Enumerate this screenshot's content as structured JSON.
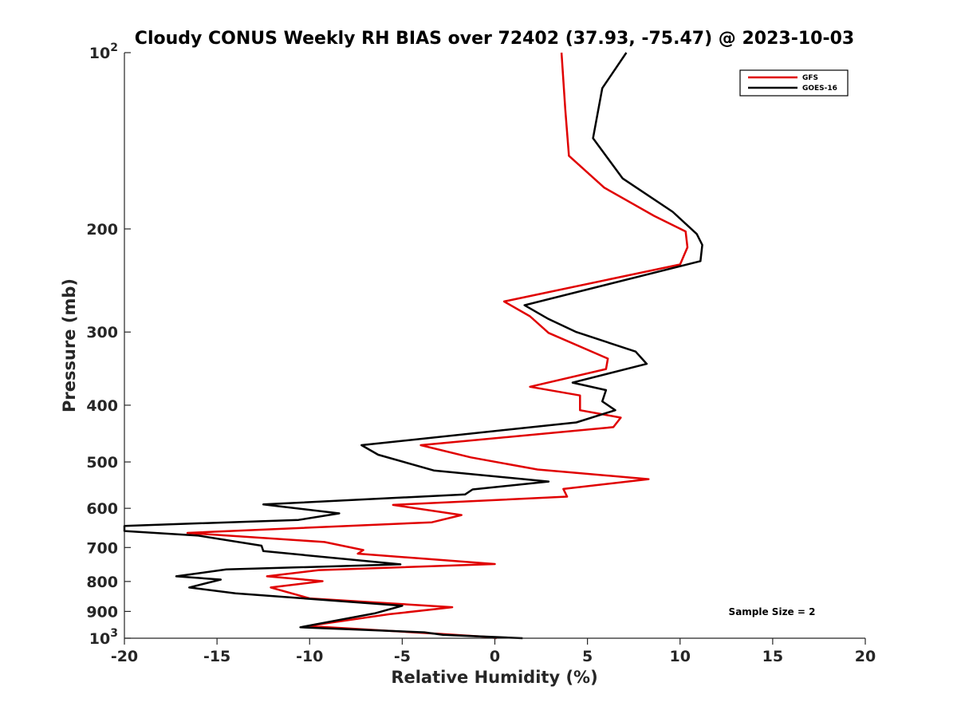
{
  "chart_data": {
    "type": "line",
    "title": "Cloudy CONUS Weekly RH BIAS over 72402 (37.93, -75.47) @ 2023-10-03",
    "xlabel": "Relative Humidity (%)",
    "ylabel": "Pressure (mb)",
    "xlim": [
      -20,
      20
    ],
    "ylim": [
      100,
      1000
    ],
    "yscale": "log",
    "y_reversed": true,
    "xticks": [
      "-20",
      "-15",
      "-10",
      "-5",
      "0",
      "5",
      "10",
      "15",
      "20"
    ],
    "yticks": [
      {
        "value": 100,
        "base": "10",
        "exp": "2"
      },
      {
        "value": 200,
        "label": "200"
      },
      {
        "value": 300,
        "label": "300"
      },
      {
        "value": 400,
        "label": "400"
      },
      {
        "value": 500,
        "label": "500"
      },
      {
        "value": 600,
        "label": "600"
      },
      {
        "value": 700,
        "label": "700"
      },
      {
        "value": 800,
        "label": "800"
      },
      {
        "value": 900,
        "label": "900"
      },
      {
        "value": 1000,
        "base": "10",
        "exp": "3"
      }
    ],
    "grid": false,
    "legend_position": "top-right",
    "annotation": "Sample Size = 2",
    "series": [
      {
        "name": "GFS",
        "color": "#e00000",
        "points": [
          [
            3.6,
            100
          ],
          [
            3.8,
            125
          ],
          [
            4.0,
            150
          ],
          [
            5.9,
            170
          ],
          [
            8.6,
            190
          ],
          [
            10.3,
            202
          ],
          [
            10.4,
            215
          ],
          [
            10.0,
            230
          ],
          [
            0.5,
            266
          ],
          [
            1.9,
            282
          ],
          [
            2.9,
            301
          ],
          [
            6.1,
            333
          ],
          [
            6.0,
            347
          ],
          [
            1.9,
            372
          ],
          [
            4.6,
            385
          ],
          [
            4.6,
            408
          ],
          [
            6.8,
            420
          ],
          [
            6.4,
            436
          ],
          [
            -4.0,
            468
          ],
          [
            -1.3,
            491
          ],
          [
            2.3,
            515
          ],
          [
            8.3,
            535
          ],
          [
            3.7,
            556
          ],
          [
            3.9,
            573
          ],
          [
            -5.5,
            592
          ],
          [
            -1.8,
            616
          ],
          [
            -3.4,
            634
          ],
          [
            -16.6,
            661
          ],
          [
            -9.2,
            685
          ],
          [
            -7.1,
            707
          ],
          [
            -7.4,
            717
          ],
          [
            0.0,
            747
          ],
          [
            -9.5,
            765
          ],
          [
            -12.3,
            784
          ],
          [
            -9.3,
            799
          ],
          [
            -12.1,
            819
          ],
          [
            -10.0,
            855
          ],
          [
            -2.3,
            885
          ],
          [
            -5.7,
            910
          ],
          [
            -10.1,
            953
          ],
          [
            -3.0,
            983
          ],
          [
            -0.4,
            995
          ],
          [
            0.1,
            1000
          ]
        ]
      },
      {
        "name": "GOES-16",
        "color": "#000000",
        "points": [
          [
            7.1,
            100
          ],
          [
            5.8,
            115
          ],
          [
            5.3,
            140
          ],
          [
            6.9,
            164
          ],
          [
            9.6,
            187
          ],
          [
            10.9,
            204
          ],
          [
            11.2,
            213
          ],
          [
            11.1,
            227
          ],
          [
            1.6,
            270
          ],
          [
            2.9,
            285
          ],
          [
            4.4,
            300
          ],
          [
            7.6,
            324
          ],
          [
            8.2,
            340
          ],
          [
            4.2,
            366
          ],
          [
            6.0,
            377
          ],
          [
            5.8,
            394
          ],
          [
            6.5,
            408
          ],
          [
            4.4,
            428
          ],
          [
            -7.2,
            468
          ],
          [
            -6.3,
            486
          ],
          [
            -3.3,
            517
          ],
          [
            2.9,
            540
          ],
          [
            -1.2,
            557
          ],
          [
            -1.6,
            568
          ],
          [
            -12.5,
            591
          ],
          [
            -8.4,
            612
          ],
          [
            -10.6,
            628
          ],
          [
            -20.0,
            643
          ],
          [
            -20.0,
            656
          ],
          [
            -16.0,
            668
          ],
          [
            -12.6,
            695
          ],
          [
            -12.5,
            710
          ],
          [
            -5.1,
            748
          ],
          [
            -14.5,
            763
          ],
          [
            -17.2,
            784
          ],
          [
            -14.8,
            794
          ],
          [
            -16.5,
            819
          ],
          [
            -14.0,
            838
          ],
          [
            -5.0,
            880
          ],
          [
            -6.5,
            907
          ],
          [
            -10.3,
            955
          ],
          [
            -10.5,
            958
          ],
          [
            -3.8,
            977
          ],
          [
            -2.8,
            987
          ],
          [
            1.5,
            1000
          ]
        ]
      }
    ]
  }
}
